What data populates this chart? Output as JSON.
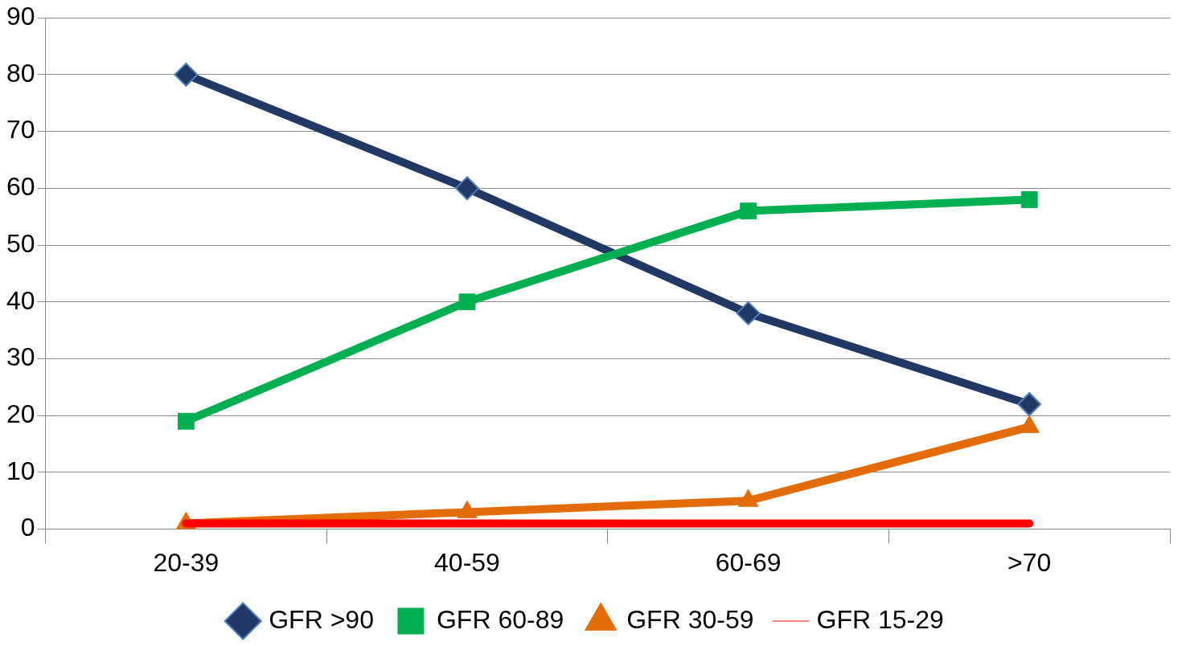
{
  "chart_data": {
    "type": "line",
    "categories": [
      "20-39",
      "40-59",
      "60-69",
      ">70"
    ],
    "series": [
      {
        "name": "GFR >90",
        "color": "#1f3864",
        "marker": "diamond",
        "values": [
          80,
          60,
          38,
          22
        ]
      },
      {
        "name": "GFR 60-89",
        "color": "#00b050",
        "marker": "square",
        "values": [
          19,
          40,
          56,
          58
        ]
      },
      {
        "name": "GFR 30-59",
        "color": "#e36c09",
        "marker": "triangle",
        "values": [
          1,
          3,
          5,
          18
        ]
      },
      {
        "name": "GFR 15-29",
        "color": "#ff0000",
        "marker": "none",
        "values": [
          1,
          1,
          1,
          1
        ]
      }
    ],
    "ylim": [
      0,
      90
    ],
    "yticks": [
      0,
      10,
      20,
      30,
      40,
      50,
      60,
      70,
      80,
      90
    ],
    "grid": "y",
    "legend": "bottom",
    "line_style": "solid"
  }
}
